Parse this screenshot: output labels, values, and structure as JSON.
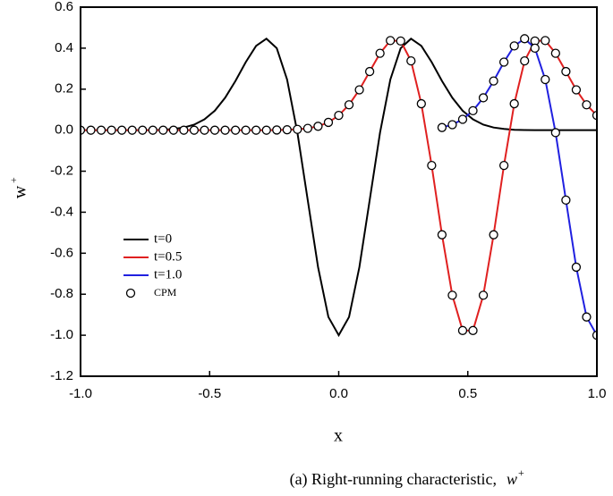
{
  "chart_data": {
    "type": "line",
    "xlabel": "x",
    "ylabel_base": "w",
    "ylabel_sup": "+",
    "caption": "(a) Right-running characteristic,",
    "caption_var": "w",
    "caption_sup": "+",
    "xlim": [
      -1,
      1
    ],
    "ylim": [
      -1.2,
      0.6
    ],
    "xticks": [
      {
        "value": -1,
        "label": "-1.0"
      },
      -0.5,
      {
        "value": 0,
        "label": "0.0"
      },
      0.5,
      {
        "value": 1,
        "label": "1.0"
      }
    ],
    "yticks": [
      -1.2,
      {
        "value": -1,
        "label": "-1.0"
      },
      -0.8,
      -0.6,
      -0.4,
      -0.2,
      {
        "value": 0,
        "label": "0.0"
      },
      0.2,
      0.4,
      0.6
    ],
    "grid": false,
    "legend": "lower-left",
    "series": [
      {
        "name": "t=0",
        "color": "#000000",
        "style": "line",
        "x": [
          -1,
          -0.96,
          -0.92,
          -0.88,
          -0.84,
          -0.8,
          -0.76,
          -0.72,
          -0.68,
          -0.64,
          -0.6,
          -0.56,
          -0.52,
          -0.48,
          -0.44,
          -0.4,
          -0.36,
          -0.32,
          -0.28,
          -0.24,
          -0.2,
          -0.16,
          -0.12,
          -0.08,
          -0.04,
          0,
          0.04,
          0.08,
          0.12,
          0.16,
          0.2,
          0.24,
          0.28,
          0.32,
          0.36,
          0.4,
          0.44,
          0.48,
          0.52,
          0.56,
          0.6,
          0.64,
          0.68,
          0.72,
          0.76,
          0.8,
          0.84,
          0.88,
          0.92,
          0.96,
          1
        ],
        "values": [
          0,
          0,
          0,
          0,
          0,
          0,
          0,
          0.001,
          0.002,
          0.006,
          0.013,
          0.027,
          0.053,
          0.095,
          0.158,
          0.24,
          0.332,
          0.411,
          0.446,
          0.4,
          0.247,
          -0.012,
          -0.341,
          -0.668,
          -0.911,
          -1,
          -0.911,
          -0.668,
          -0.341,
          -0.012,
          0.247,
          0.4,
          0.446,
          0.411,
          0.332,
          0.24,
          0.158,
          0.095,
          0.053,
          0.027,
          0.013,
          0.006,
          0.002,
          0.001,
          0,
          0,
          0,
          0,
          0,
          0,
          0
        ]
      },
      {
        "name": "t=0.5",
        "color": "#e02020",
        "style": "line",
        "x": [
          -1,
          -0.96,
          -0.92,
          -0.88,
          -0.84,
          -0.8,
          -0.76,
          -0.72,
          -0.68,
          -0.64,
          -0.6,
          -0.56,
          -0.52,
          -0.48,
          -0.44,
          -0.4,
          -0.36,
          -0.32,
          -0.28,
          -0.24,
          -0.2,
          -0.16,
          -0.12,
          -0.08,
          -0.04,
          0,
          0.04,
          0.08,
          0.12,
          0.16,
          0.2,
          0.24,
          0.28,
          0.32,
          0.36,
          0.4,
          0.44,
          0.48,
          0.52,
          0.56,
          0.6,
          0.64,
          0.68,
          0.72,
          0.76,
          0.8,
          0.84,
          0.88,
          0.92,
          0.96,
          1
        ],
        "values": [
          0,
          0,
          0,
          0,
          0,
          0,
          0,
          0,
          0,
          0,
          0,
          0,
          0,
          0,
          0,
          0,
          0,
          0,
          0,
          0.001,
          0.002,
          0.004,
          0.009,
          0.019,
          0.038,
          0.072,
          0.124,
          0.197,
          0.286,
          0.375,
          0.437,
          0.435,
          0.338,
          0.129,
          -0.172,
          -0.51,
          -0.805,
          -0.977,
          -0.977,
          -0.805,
          -0.51,
          -0.172,
          0.129,
          0.338,
          0.435,
          0.437,
          0.375,
          0.286,
          0.197,
          0.124,
          0.072
        ]
      },
      {
        "name": "t=1.0",
        "color": "#2020e0",
        "style": "line",
        "x": [
          0.4,
          0.44,
          0.48,
          0.52,
          0.56,
          0.6,
          0.64,
          0.68,
          0.72,
          0.76,
          0.8,
          0.84,
          0.88,
          0.92,
          0.96,
          1
        ],
        "values": [
          0.013,
          0.027,
          0.053,
          0.095,
          0.158,
          0.24,
          0.332,
          0.411,
          0.446,
          0.4,
          0.247,
          -0.012,
          -0.341,
          -0.668,
          -0.911,
          -1
        ]
      },
      {
        "name": "CPM",
        "color": "#000000",
        "style": "marker",
        "x": [
          -1,
          -0.96,
          -0.92,
          -0.88,
          -0.84,
          -0.8,
          -0.76,
          -0.72,
          -0.68,
          -0.64,
          -0.6,
          -0.56,
          -0.52,
          -0.48,
          -0.44,
          -0.4,
          -0.36,
          -0.32,
          -0.28,
          -0.24,
          -0.2,
          -0.16,
          -0.12,
          -0.08,
          -0.04,
          0,
          0.04,
          0.08,
          0.12,
          0.16,
          0.2,
          0.24,
          0.28,
          0.32,
          0.36,
          0.4,
          0.44,
          0.48,
          0.52,
          0.56,
          0.6,
          0.64,
          0.68,
          0.72,
          0.76,
          0.8,
          0.84,
          0.88,
          0.92,
          0.96,
          1,
          0.4,
          0.44,
          0.48,
          0.52,
          0.56,
          0.6,
          0.64,
          0.68,
          0.72,
          0.76,
          0.8,
          0.84,
          0.88,
          0.92,
          0.96,
          1
        ],
        "values": [
          0,
          0,
          0,
          0,
          0,
          0,
          0,
          0,
          0,
          0,
          0,
          0,
          0,
          0,
          0,
          0,
          0,
          0,
          0,
          0.001,
          0.002,
          0.004,
          0.009,
          0.019,
          0.038,
          0.072,
          0.124,
          0.197,
          0.286,
          0.375,
          0.437,
          0.435,
          0.338,
          0.129,
          -0.172,
          -0.51,
          -0.805,
          -0.977,
          -0.977,
          -0.805,
          -0.51,
          -0.172,
          0.129,
          0.338,
          0.435,
          0.437,
          0.375,
          0.286,
          0.197,
          0.124,
          0.072,
          0.013,
          0.027,
          0.053,
          0.095,
          0.158,
          0.24,
          0.332,
          0.411,
          0.446,
          0.4,
          0.247,
          -0.012,
          -0.341,
          -0.668,
          -0.911,
          -1
        ]
      }
    ]
  }
}
